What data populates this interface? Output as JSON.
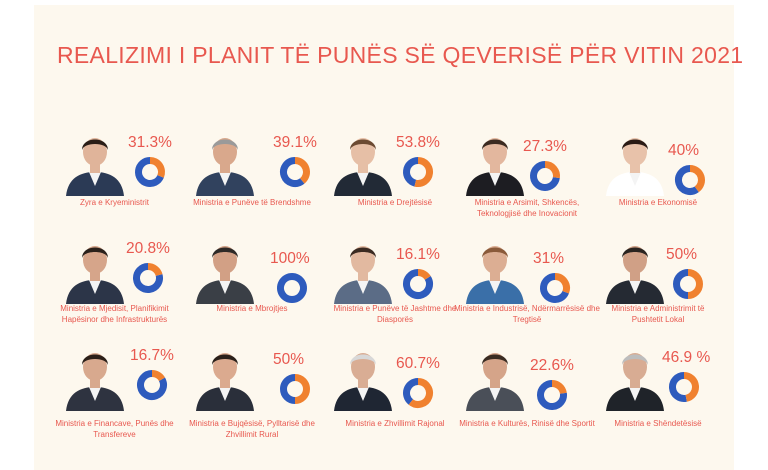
{
  "title": "REALIZIMI I PLANIT TË PUNËS SË QEVERISË PËR VITIN 2021",
  "colors": {
    "accent": "#e8584f",
    "done": "#f0812f",
    "remaining": "#2e5bbd",
    "title": "#e8584f"
  },
  "chart_data": {
    "type": "pie",
    "title": "REALIZIMI I PLANIT TË PUNËS SË QEVERISË PËR VITIN 2021",
    "categories": [
      "Zyra e Kryeministrit",
      "Ministria e Punëve të Brendshme",
      "Ministria e Drejtësisë",
      "Ministria e Arsimit, Shkencës, Teknologjisë dhe Inovacionit",
      "Ministria  e Ekonomisë",
      "Ministria e Mjedisit, Planifikimit Hapësinor dhe Infrastrukturës",
      "Ministria e Mbrojtjes",
      "Ministria e Punëve të Jashtme dhe Diasporës",
      "Ministria e Industrisë, Ndërmarrësisë dhe Tregtisë",
      "Ministria e Administrimit të Pushtetit Lokal",
      "Ministria e Financave, Punës dhe Transfereve",
      "Ministria e Bujqësisë, Pylltarisë dhe Zhvillimit Rural",
      "Ministria e Zhvillimit Rajonal",
      "Ministria e Kulturës, Rinisë dhe Sportit",
      "Ministria e Shëndetësisë"
    ],
    "values": [
      31.3,
      39.1,
      53.8,
      27.3,
      40,
      20.8,
      100,
      16.1,
      31,
      50,
      16.7,
      50,
      60.7,
      22.6,
      46.9
    ],
    "labels": [
      "31.3%",
      "39.1%",
      "53.8%",
      "27.3%",
      "40%",
      "20.8%",
      "100%",
      "16.1%",
      "31%",
      "50%",
      "16.7%",
      "50%",
      "60.7%",
      "22.6%",
      "46.9 %"
    ]
  }
}
